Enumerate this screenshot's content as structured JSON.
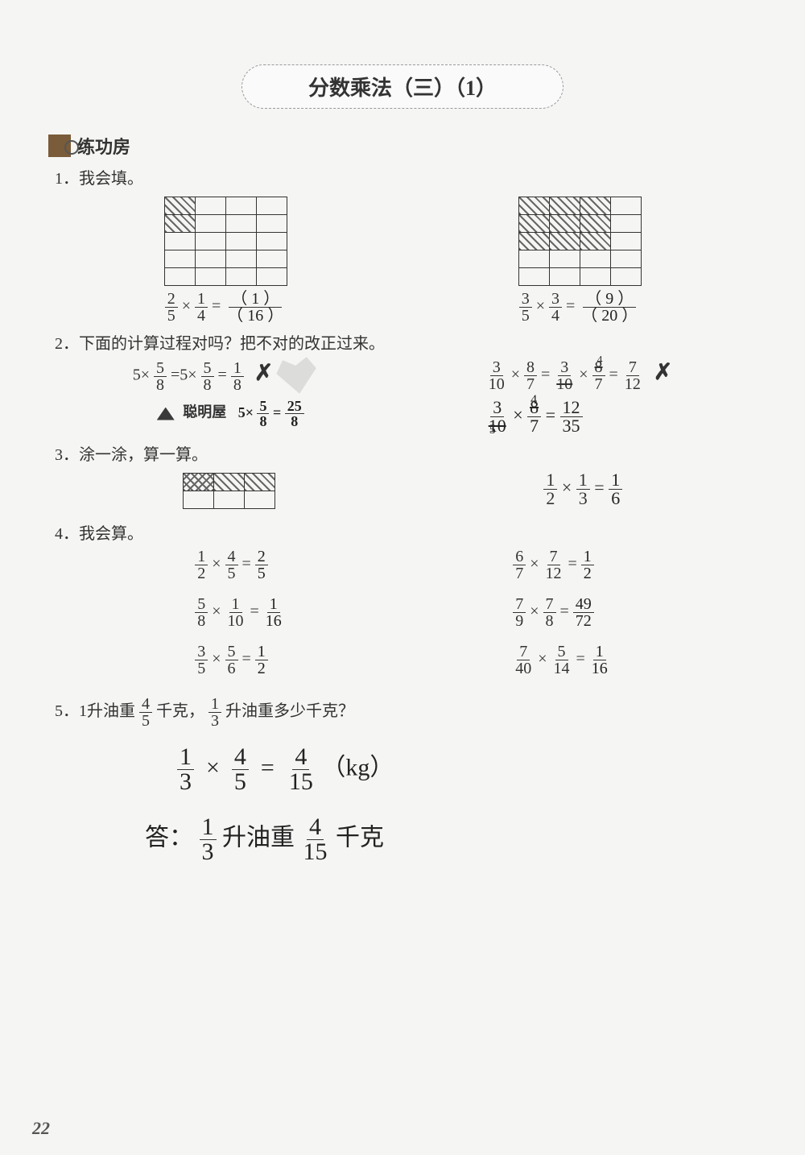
{
  "title": "分数乘法（三）（1）",
  "section1": {
    "label": "练功房"
  },
  "q1": {
    "prompt": "1．我会填。",
    "left": {
      "expr_a": "2",
      "expr_b": "5",
      "expr_c": "1",
      "expr_d": "4",
      "ans_top": "（ 1 ）",
      "ans_bot": "（ 16 ）"
    },
    "right": {
      "expr_a": "3",
      "expr_b": "5",
      "expr_c": "3",
      "expr_d": "4",
      "ans_top": "（ 9 ）",
      "ans_bot": "（ 20 ）"
    }
  },
  "q2": {
    "prompt": "2．下面的计算过程对吗？把不对的改正过来。",
    "left_print": "5×",
    "left_frac": {
      "n": "5",
      "d": "8"
    },
    "left_mid": "=5×",
    "left_frac2": {
      "n": "5",
      "d": "8"
    },
    "left_end": "=",
    "left_res": {
      "n": "1",
      "d": "8"
    },
    "smart_label": "聪明屋",
    "left_correct_pre": "5×",
    "left_correct_frac": {
      "n": "5",
      "d": "8"
    },
    "left_correct_eq": "=",
    "left_correct_res": {
      "n": "25",
      "d": "8"
    },
    "right_l": {
      "n": "3",
      "d": "10"
    },
    "right_m": {
      "n": "8",
      "d": "7"
    },
    "right_eq1": "=",
    "right_l2": {
      "n": "3",
      "d": "10"
    },
    "right_m2": {
      "n": "8",
      "d": "7"
    },
    "right_eq2": "=",
    "right_res": {
      "n": "7",
      "d": "12"
    },
    "right_sup4": "4",
    "right_corr_a": {
      "n": "3",
      "d": "10"
    },
    "right_corr_b": {
      "n": "8",
      "d": "7"
    },
    "right_corr_sup": "4",
    "right_corr_sub": "5",
    "right_corr_eq": "=",
    "right_corr_res": {
      "n": "12",
      "d": "35"
    }
  },
  "q3": {
    "prompt": "3．涂一涂，算一算。",
    "expr_a": {
      "n": "1",
      "d": "2"
    },
    "expr_b": {
      "n": "1",
      "d": "3"
    },
    "ans": {
      "n": "1",
      "d": "6"
    }
  },
  "q4": {
    "prompt": "4．我会算。",
    "left": [
      {
        "a": {
          "n": "1",
          "d": "2"
        },
        "b": {
          "n": "4",
          "d": "5"
        },
        "ans": {
          "n": "2",
          "d": "5"
        }
      },
      {
        "a": {
          "n": "5",
          "d": "8"
        },
        "b": {
          "n": "1",
          "d": "10"
        },
        "ans": {
          "n": "1",
          "d": "16"
        }
      },
      {
        "a": {
          "n": "3",
          "d": "5"
        },
        "b": {
          "n": "5",
          "d": "6"
        },
        "ans": {
          "n": "1",
          "d": "2"
        }
      }
    ],
    "right": [
      {
        "a": {
          "n": "6",
          "d": "7"
        },
        "b": {
          "n": "7",
          "d": "12"
        },
        "ans": {
          "n": "1",
          "d": "2"
        }
      },
      {
        "a": {
          "n": "7",
          "d": "9"
        },
        "b": {
          "n": "7",
          "d": "8"
        },
        "ans": {
          "n": "49",
          "d": "72"
        }
      },
      {
        "a": {
          "n": "7",
          "d": "40"
        },
        "b": {
          "n": "5",
          "d": "14"
        },
        "ans": {
          "n": "1",
          "d": "16"
        }
      }
    ]
  },
  "q5": {
    "prompt_pre": "5．1升油重",
    "frac1": {
      "n": "4",
      "d": "5"
    },
    "prompt_mid": "千克，",
    "frac2": {
      "n": "1",
      "d": "3"
    },
    "prompt_end": "升油重多少千克？",
    "work_a": {
      "n": "1",
      "d": "3"
    },
    "work_b": {
      "n": "4",
      "d": "5"
    },
    "work_res": {
      "n": "4",
      "d": "15"
    },
    "work_unit": "（kg）",
    "answer_pre": "答：",
    "answer_f1": {
      "n": "1",
      "d": "3"
    },
    "answer_mid": "升油重",
    "answer_f2": {
      "n": "4",
      "d": "15"
    },
    "answer_end": "千克"
  },
  "page_number": "22",
  "colors": {
    "bg": "#f5f5f3",
    "text": "#333333",
    "hand": "#222222",
    "border": "#333333"
  }
}
